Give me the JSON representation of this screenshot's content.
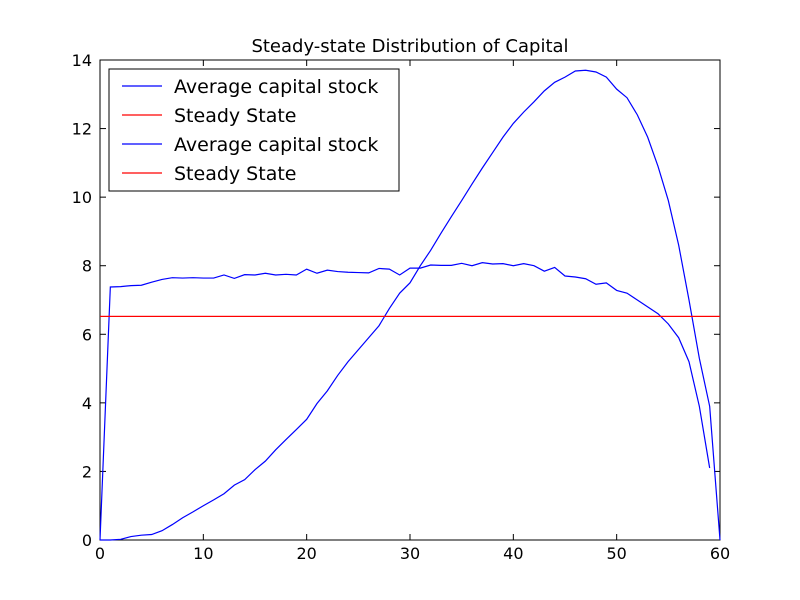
{
  "chart_data": {
    "type": "line",
    "title": "Steady-state Distribution of Capital",
    "xlabel": "",
    "ylabel": "",
    "xlim": [
      0,
      60
    ],
    "ylim": [
      0,
      14
    ],
    "xticks": [
      0,
      10,
      20,
      30,
      40,
      50,
      60
    ],
    "yticks": [
      0,
      2,
      4,
      6,
      8,
      10,
      12,
      14
    ],
    "grid": false,
    "legend_position": "top-left",
    "series": [
      {
        "name": "Average capital stock",
        "color": "#0000ff",
        "points": [
          [
            0,
            0
          ],
          [
            1,
            7.38
          ],
          [
            2,
            7.39
          ],
          [
            3,
            7.42
          ],
          [
            4,
            7.43
          ],
          [
            5,
            7.52
          ],
          [
            6,
            7.6
          ],
          [
            7,
            7.65
          ],
          [
            8,
            7.64
          ],
          [
            9,
            7.65
          ],
          [
            10,
            7.64
          ],
          [
            11,
            7.64
          ],
          [
            12,
            7.73
          ],
          [
            13,
            7.63
          ],
          [
            14,
            7.74
          ],
          [
            15,
            7.73
          ],
          [
            16,
            7.78
          ],
          [
            17,
            7.73
          ],
          [
            18,
            7.75
          ],
          [
            19,
            7.73
          ],
          [
            20,
            7.9
          ],
          [
            21,
            7.78
          ],
          [
            22,
            7.87
          ],
          [
            23,
            7.83
          ],
          [
            24,
            7.81
          ],
          [
            25,
            7.8
          ],
          [
            26,
            7.79
          ],
          [
            27,
            7.92
          ],
          [
            28,
            7.9
          ],
          [
            29,
            7.73
          ],
          [
            30,
            7.93
          ],
          [
            31,
            7.93
          ],
          [
            32,
            8.02
          ],
          [
            33,
            8.01
          ],
          [
            34,
            8.01
          ],
          [
            35,
            8.07
          ],
          [
            36,
            8.0
          ],
          [
            37,
            8.09
          ],
          [
            38,
            8.05
          ],
          [
            39,
            8.06
          ],
          [
            40,
            8.0
          ],
          [
            41,
            8.06
          ],
          [
            42,
            8.0
          ],
          [
            43,
            7.84
          ],
          [
            44,
            7.95
          ],
          [
            45,
            7.7
          ],
          [
            46,
            7.67
          ],
          [
            47,
            7.62
          ],
          [
            48,
            7.46
          ],
          [
            49,
            7.5
          ],
          [
            50,
            7.28
          ],
          [
            51,
            7.2
          ],
          [
            52,
            7.0
          ],
          [
            53,
            6.8
          ],
          [
            54,
            6.6
          ],
          [
            55,
            6.3
          ],
          [
            56,
            5.9
          ],
          [
            57,
            5.2
          ],
          [
            58,
            3.9
          ],
          [
            59,
            2.1
          ]
        ]
      },
      {
        "name": "Steady State",
        "color": "#ff0000",
        "points": [
          [
            0,
            6.52
          ],
          [
            60,
            6.52
          ]
        ]
      },
      {
        "name": "Average capital stock",
        "color": "#0000ff",
        "points": [
          [
            0,
            0
          ],
          [
            1,
            0
          ],
          [
            2,
            0.02
          ],
          [
            3,
            0.1
          ],
          [
            4,
            0.14
          ],
          [
            5,
            0.16
          ],
          [
            6,
            0.27
          ],
          [
            7,
            0.45
          ],
          [
            8,
            0.65
          ],
          [
            9,
            0.82
          ],
          [
            10,
            1.0
          ],
          [
            11,
            1.17
          ],
          [
            12,
            1.35
          ],
          [
            13,
            1.6
          ],
          [
            14,
            1.76
          ],
          [
            15,
            2.05
          ],
          [
            16,
            2.3
          ],
          [
            17,
            2.63
          ],
          [
            18,
            2.93
          ],
          [
            19,
            3.22
          ],
          [
            20,
            3.52
          ],
          [
            21,
            3.98
          ],
          [
            22,
            4.35
          ],
          [
            23,
            4.8
          ],
          [
            24,
            5.2
          ],
          [
            25,
            5.55
          ],
          [
            26,
            5.9
          ],
          [
            27,
            6.25
          ],
          [
            28,
            6.75
          ],
          [
            29,
            7.2
          ],
          [
            30,
            7.5
          ],
          [
            31,
            8.0
          ],
          [
            32,
            8.45
          ],
          [
            33,
            8.95
          ],
          [
            34,
            9.43
          ],
          [
            35,
            9.9
          ],
          [
            36,
            10.38
          ],
          [
            37,
            10.85
          ],
          [
            38,
            11.3
          ],
          [
            39,
            11.75
          ],
          [
            40,
            12.15
          ],
          [
            41,
            12.48
          ],
          [
            42,
            12.78
          ],
          [
            43,
            13.1
          ],
          [
            44,
            13.35
          ],
          [
            45,
            13.5
          ],
          [
            46,
            13.68
          ],
          [
            47,
            13.7
          ],
          [
            48,
            13.65
          ],
          [
            49,
            13.5
          ],
          [
            50,
            13.15
          ],
          [
            51,
            12.9
          ],
          [
            52,
            12.4
          ],
          [
            53,
            11.75
          ],
          [
            54,
            10.9
          ],
          [
            55,
            9.9
          ],
          [
            56,
            8.6
          ],
          [
            57,
            7.0
          ],
          [
            58,
            5.3
          ],
          [
            59,
            3.9
          ],
          [
            60,
            0
          ]
        ]
      },
      {
        "name": "Steady State",
        "color": "#ff0000",
        "points": [
          [
            0,
            6.52
          ],
          [
            60,
            6.52
          ]
        ]
      }
    ]
  }
}
